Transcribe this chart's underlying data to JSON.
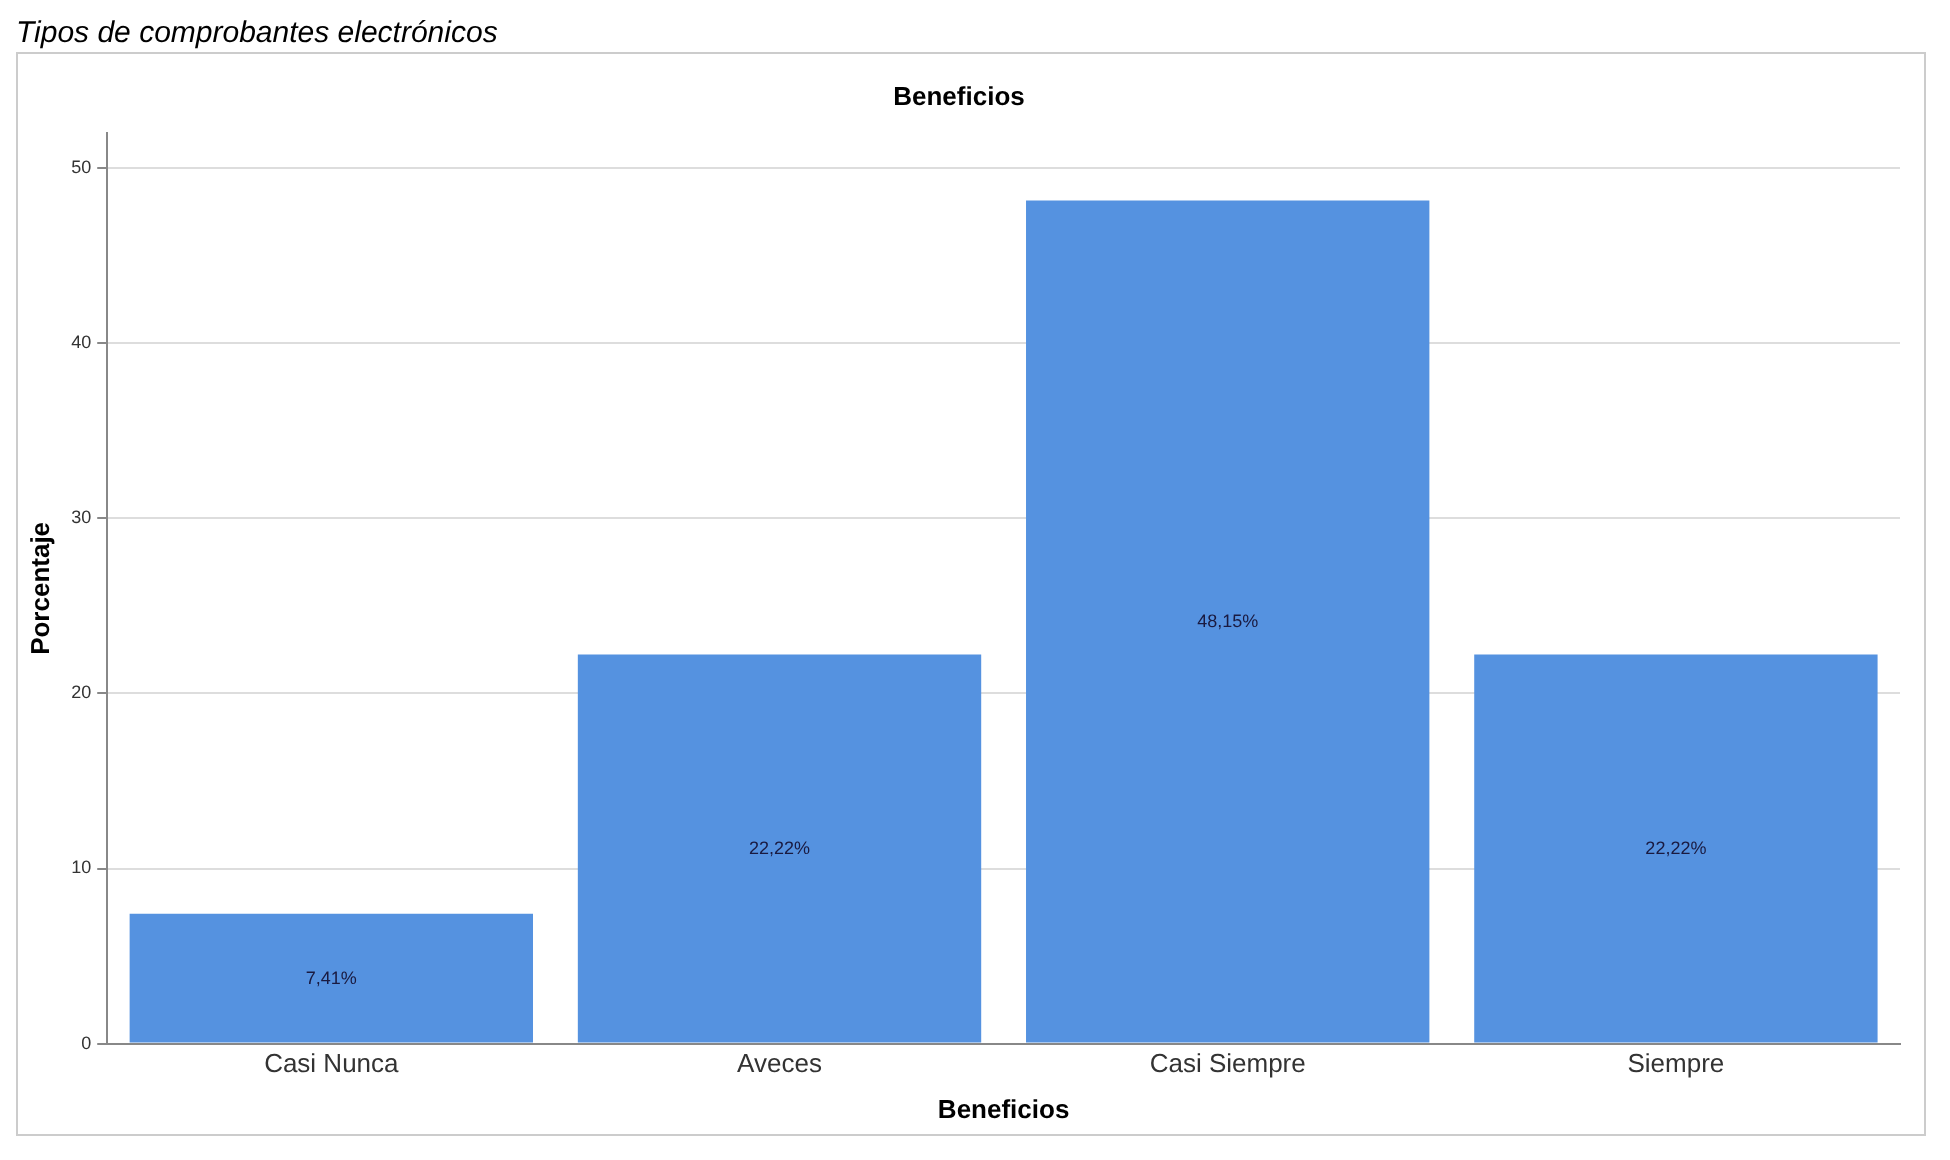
{
  "chart_data": {
    "type": "bar",
    "title": "Beneficios",
    "xlabel": "Beneficios",
    "ylabel": "Porcentaje",
    "annotations": [
      "Tipos de comprobantes electrónicos"
    ],
    "categories": [
      "Casi Nunca",
      "Aveces",
      "Casi Siempre",
      "Siempre"
    ],
    "values": [
      7.41,
      22.22,
      48.15,
      22.22
    ],
    "value_labels": [
      "7,41%",
      "22,22%",
      "48,15%",
      "22,22%"
    ],
    "color": "#5592e0",
    "ylim": [
      0,
      52
    ],
    "yticks": [
      0,
      10,
      20,
      30,
      40,
      50
    ],
    "grid": "y",
    "legend": false
  }
}
